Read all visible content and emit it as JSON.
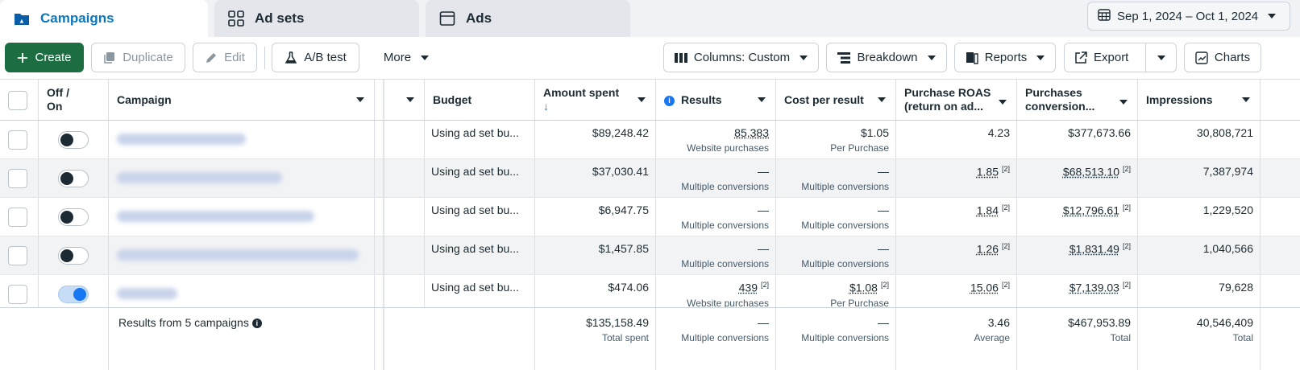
{
  "tabs": {
    "campaigns": "Campaigns",
    "adsets": "Ad sets",
    "ads": "Ads"
  },
  "date_range": "Sep 1, 2024 – Oct 1, 2024",
  "toolbar": {
    "create": "Create",
    "duplicate": "Duplicate",
    "edit": "Edit",
    "ab_test": "A/B test",
    "more": "More",
    "columns": "Columns: Custom",
    "breakdown": "Breakdown",
    "reports": "Reports",
    "export": "Export",
    "charts": "Charts"
  },
  "columns": {
    "offon_line1": "Off /",
    "offon_line2": "On",
    "campaign": "Campaign",
    "budget": "Budget",
    "amount_spent": "Amount spent",
    "amount_spent_sort": "↓",
    "results": "Results",
    "cost_per_result": "Cost per result",
    "roas_line1": "Purchase ROAS",
    "roas_line2": "(return on ad...",
    "purchases_line1": "Purchases",
    "purchases_line2": "conversion...",
    "impressions": "Impressions"
  },
  "rows": [
    {
      "on": false,
      "budget": "Using ad set bu...",
      "amount": "$89,248.42",
      "results": "85,383",
      "results_sup": "",
      "results_sub": "Website purchases",
      "cpr": "$1.05",
      "cpr_sup": "",
      "cpr_sub": "Per Purchase",
      "roas": "4.23",
      "roas_sup": "",
      "purchases": "$377,673.66",
      "purchases_sup": "",
      "impressions": "30,808,721"
    },
    {
      "on": false,
      "budget": "Using ad set bu...",
      "amount": "$37,030.41",
      "results": "—",
      "results_sup": "",
      "results_sub": "Multiple conversions",
      "cpr": "—",
      "cpr_sup": "",
      "cpr_sub": "Multiple conversions",
      "roas": "1.85",
      "roas_sup": "[2]",
      "purchases": "$68,513.10",
      "purchases_sup": "[2]",
      "impressions": "7,387,974"
    },
    {
      "on": false,
      "budget": "Using ad set bu...",
      "amount": "$6,947.75",
      "results": "—",
      "results_sup": "",
      "results_sub": "Multiple conversions",
      "cpr": "—",
      "cpr_sup": "",
      "cpr_sub": "Multiple conversions",
      "roas": "1.84",
      "roas_sup": "[2]",
      "purchases": "$12,796.61",
      "purchases_sup": "[2]",
      "impressions": "1,229,520"
    },
    {
      "on": false,
      "budget": "Using ad set bu...",
      "amount": "$1,457.85",
      "results": "—",
      "results_sup": "",
      "results_sub": "Multiple conversions",
      "cpr": "—",
      "cpr_sup": "",
      "cpr_sub": "Multiple conversions",
      "roas": "1.26",
      "roas_sup": "[2]",
      "purchases": "$1,831.49",
      "purchases_sup": "[2]",
      "impressions": "1,040,566"
    },
    {
      "on": true,
      "budget": "Using ad set bu...",
      "amount": "$474.06",
      "results": "439",
      "results_sup": "[2]",
      "results_sub": "Website purchases",
      "cpr": "$1.08",
      "cpr_sup": "[2]",
      "cpr_sub": "Per Purchase",
      "roas": "15.06",
      "roas_sup": "[2]",
      "purchases": "$7,139.03",
      "purchases_sup": "[2]",
      "impressions": "79,628"
    }
  ],
  "footer": {
    "label": "Results from 5 campaigns",
    "amount": "$135,158.49",
    "amount_sub": "Total spent",
    "results": "—",
    "results_sub": "Multiple conversions",
    "cpr": "—",
    "cpr_sub": "Multiple conversions",
    "roas": "3.46",
    "roas_sub": "Average",
    "purchases": "$467,953.89",
    "purchases_sub": "Total",
    "impressions": "40,546,409",
    "impressions_sub": "Total"
  },
  "colors": {
    "accent": "#0a78be",
    "create_button": "#1c6e42",
    "toggle_on": "#1877f2"
  }
}
